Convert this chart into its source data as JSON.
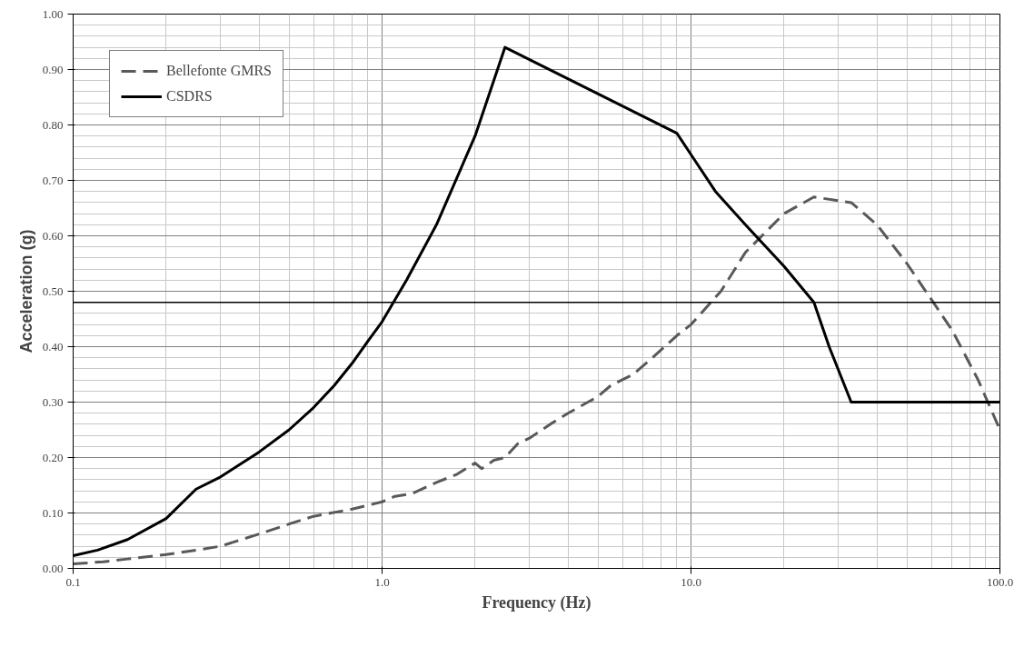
{
  "chart_data": {
    "type": "line",
    "xlabel": "Frequency (Hz)",
    "ylabel": "Acceleration (g)",
    "log": "x",
    "grid": true,
    "legend": "top left",
    "marker": "none",
    "xlim": [
      0.1,
      100
    ],
    "xticks": [
      {
        "value": 0.1,
        "label": "0.1"
      },
      {
        "value": 1,
        "label": "1.0"
      },
      {
        "value": 10,
        "label": "10.0"
      },
      {
        "value": 100,
        "label": "100.0"
      }
    ],
    "ylim": [
      0,
      1
    ],
    "yticks": [
      {
        "value": 0,
        "label": "0.00"
      },
      {
        "value": 0.1,
        "label": "0.10"
      },
      {
        "value": 0.2,
        "label": "0.20"
      },
      {
        "value": 0.3,
        "label": "0.30"
      },
      {
        "value": 0.4,
        "label": "0.40"
      },
      {
        "value": 0.5,
        "label": "0.50"
      },
      {
        "value": 0.6,
        "label": "0.60"
      },
      {
        "value": 0.7,
        "label": "0.70"
      },
      {
        "value": 0.8,
        "label": "0.80"
      },
      {
        "value": 0.9,
        "label": "0.90"
      },
      {
        "value": 1,
        "label": "1.00"
      }
    ],
    "series": [
      {
        "name": "Bellefonte GMRS",
        "color": "#595959",
        "line_style": "dashed",
        "x": [
          0.1,
          0.125,
          0.15,
          0.2,
          0.25,
          0.3,
          0.4,
          0.5,
          0.6,
          0.8,
          1.0,
          1.1,
          1.25,
          1.5,
          1.75,
          2.0,
          2.1,
          2.3,
          2.5,
          2.75,
          3,
          3.5,
          4,
          5,
          5.5,
          6.5,
          7.5,
          9,
          10,
          12.5,
          15,
          20,
          25,
          33,
          40,
          50,
          70,
          85,
          100
        ],
        "values": [
          0.008,
          0.012,
          0.017,
          0.025,
          0.033,
          0.04,
          0.062,
          0.08,
          0.094,
          0.107,
          0.12,
          0.13,
          0.135,
          0.155,
          0.17,
          0.19,
          0.18,
          0.195,
          0.2,
          0.225,
          0.235,
          0.26,
          0.28,
          0.31,
          0.33,
          0.35,
          0.38,
          0.42,
          0.44,
          0.5,
          0.57,
          0.64,
          0.67,
          0.66,
          0.62,
          0.55,
          0.43,
          0.34,
          0.25
        ]
      },
      {
        "name": "CSDRS",
        "color": "#000000",
        "line_style": "solid",
        "x": [
          0.1,
          0.12,
          0.15,
          0.2,
          0.25,
          0.3,
          0.4,
          0.5,
          0.6,
          0.7,
          0.8,
          0.9,
          1.0,
          1.2,
          1.5,
          2.0,
          2.5,
          9,
          12,
          15,
          20,
          25,
          28,
          33,
          100
        ],
        "values": [
          0.023,
          0.033,
          0.052,
          0.09,
          0.143,
          0.165,
          0.21,
          0.25,
          0.29,
          0.33,
          0.37,
          0.41,
          0.445,
          0.52,
          0.62,
          0.78,
          0.94,
          0.785,
          0.68,
          0.62,
          0.545,
          0.48,
          0.4,
          0.3,
          0.3
        ]
      }
    ],
    "ref_lines": [
      {
        "axis": "y",
        "value": 0.48,
        "color": "#000000"
      }
    ]
  }
}
